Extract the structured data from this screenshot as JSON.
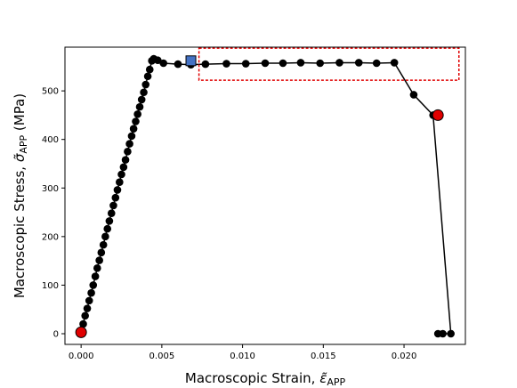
{
  "chart_data": {
    "type": "scatter",
    "title": "",
    "xlabel_main": "Macroscopic Strain, ",
    "xlabel_symbol": "ε̃",
    "xlabel_sub": "APP",
    "ylabel_main": "Macroscopic Stress, ",
    "ylabel_symbol": "σ̃",
    "ylabel_sub": "APP",
    "ylabel_unit": " (MPa)",
    "xlim": [
      -0.001,
      0.0238
    ],
    "ylim": [
      -22,
      590
    ],
    "xticks": [
      0.0,
      0.005,
      0.01,
      0.015,
      0.02
    ],
    "xtick_labels": [
      "0.000",
      "0.005",
      "0.010",
      "0.015",
      "0.020"
    ],
    "yticks": [
      0,
      100,
      200,
      300,
      400,
      500
    ],
    "ytick_labels": [
      "0",
      "100",
      "200",
      "300",
      "400",
      "500"
    ],
    "grid": false,
    "series": [
      {
        "marker": "circle",
        "color": "#000000",
        "x": [
          0.0,
          0.00013,
          0.00025,
          0.00038,
          0.0005,
          0.00063,
          0.00075,
          0.00088,
          0.001,
          0.00113,
          0.00125,
          0.00138,
          0.0015,
          0.00163,
          0.00175,
          0.00188,
          0.002,
          0.00213,
          0.00225,
          0.00238,
          0.0025,
          0.00263,
          0.00275,
          0.00288,
          0.003,
          0.00313,
          0.00325,
          0.00338,
          0.0035,
          0.00363,
          0.00375,
          0.00388,
          0.004,
          0.00413,
          0.00425,
          0.00438,
          0.0045,
          0.00475,
          0.0051,
          0.006,
          0.0068,
          0.0077,
          0.009,
          0.0102,
          0.0114,
          0.0125,
          0.0136,
          0.0148,
          0.016,
          0.0172,
          0.0183,
          0.0194,
          0.0206,
          0.0218,
          0.0229,
          0.0224,
          0.0221
        ],
        "y": [
          3,
          20,
          37,
          52,
          68,
          84,
          100,
          118,
          135,
          151,
          167,
          183,
          200,
          216,
          232,
          248,
          264,
          280,
          296,
          312,
          328,
          343,
          358,
          375,
          391,
          407,
          422,
          437,
          452,
          467,
          482,
          497,
          513,
          530,
          544,
          562,
          566,
          563,
          557,
          555,
          554,
          555,
          556,
          556,
          557,
          557,
          558,
          557,
          558,
          558,
          557,
          558,
          492,
          450,
          0,
          0,
          0
        ]
      }
    ],
    "square_point": {
      "x": 0.0068,
      "y": 562,
      "color": "#4472c4"
    },
    "red_points": [
      {
        "x": 0.0,
        "y": 3,
        "color": "#e00000"
      },
      {
        "x": 0.0221,
        "y": 450,
        "color": "#e00000"
      }
    ],
    "highlight_box": {
      "x": [
        0.0073,
        0.0234
      ],
      "y": [
        522,
        588
      ],
      "color": "#e00000",
      "style": "dashed"
    }
  }
}
